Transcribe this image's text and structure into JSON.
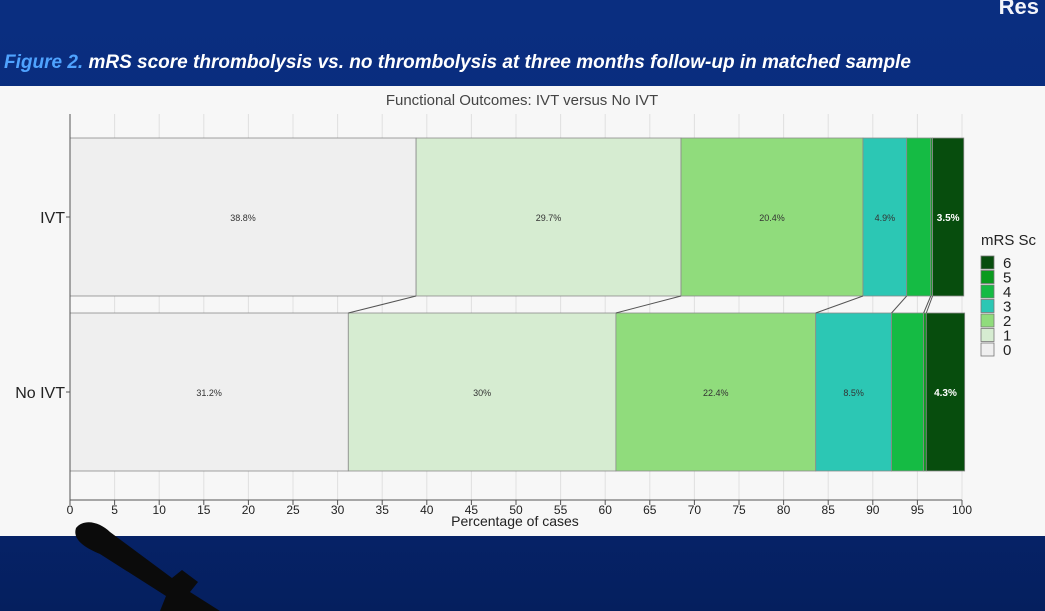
{
  "slide": {
    "corner_text": "Res",
    "caption_label": "Figure 2.",
    "caption_text": " mRS score thrombolysis vs. no thrombolysis at three months follow-up in matched sample"
  },
  "colors": {
    "slide_background": "#07297a",
    "caption_label": "#4fa3ff",
    "panel_background": "#f7f7f7",
    "mrs_0": "#efefef",
    "mrs_1": "#d6ecd1",
    "mrs_2": "#90dc7c",
    "mrs_3": "#2cc7b4",
    "mrs_4": "#15bb44",
    "mrs_5": "#0a9a1e",
    "mrs_6": "#074d0d"
  },
  "chart_data": {
    "type": "bar",
    "orientation": "horizontal-stacked",
    "title": "Functional Outcomes: IVT versus No IVT",
    "xlabel": "Percentage of cases",
    "ylabel": "",
    "xlim": [
      0,
      100
    ],
    "x_ticks": [
      "0",
      "5",
      "10",
      "15",
      "20",
      "25",
      "30",
      "35",
      "40",
      "45",
      "50",
      "55",
      "60",
      "65",
      "70",
      "75",
      "80",
      "85",
      "90",
      "95",
      "100"
    ],
    "categories": [
      "IVT",
      "No IVT"
    ],
    "legend": {
      "title": "mRS Sc",
      "position": "right",
      "entries": [
        "6",
        "5",
        "4",
        "3",
        "2",
        "1",
        "0"
      ]
    },
    "series": [
      {
        "name": "0",
        "values": [
          38.8,
          31.2
        ],
        "labels": [
          "38.8%",
          "31.2%"
        ]
      },
      {
        "name": "1",
        "values": [
          29.7,
          30.0
        ],
        "labels": [
          "29.7%",
          "30%"
        ]
      },
      {
        "name": "2",
        "values": [
          20.4,
          22.4
        ],
        "labels": [
          "20.4%",
          "22.4%"
        ]
      },
      {
        "name": "3",
        "values": [
          4.9,
          8.5
        ],
        "labels": [
          "4.9%",
          "8.5%"
        ]
      },
      {
        "name": "4",
        "values": [
          2.7,
          3.6
        ],
        "labels": [
          "",
          ""
        ]
      },
      {
        "name": "5",
        "values": [
          0.2,
          0.3
        ],
        "labels": [
          "",
          ""
        ]
      },
      {
        "name": "6",
        "values": [
          3.5,
          4.3
        ],
        "labels": [
          "3.5%",
          "4.3%"
        ]
      }
    ]
  }
}
